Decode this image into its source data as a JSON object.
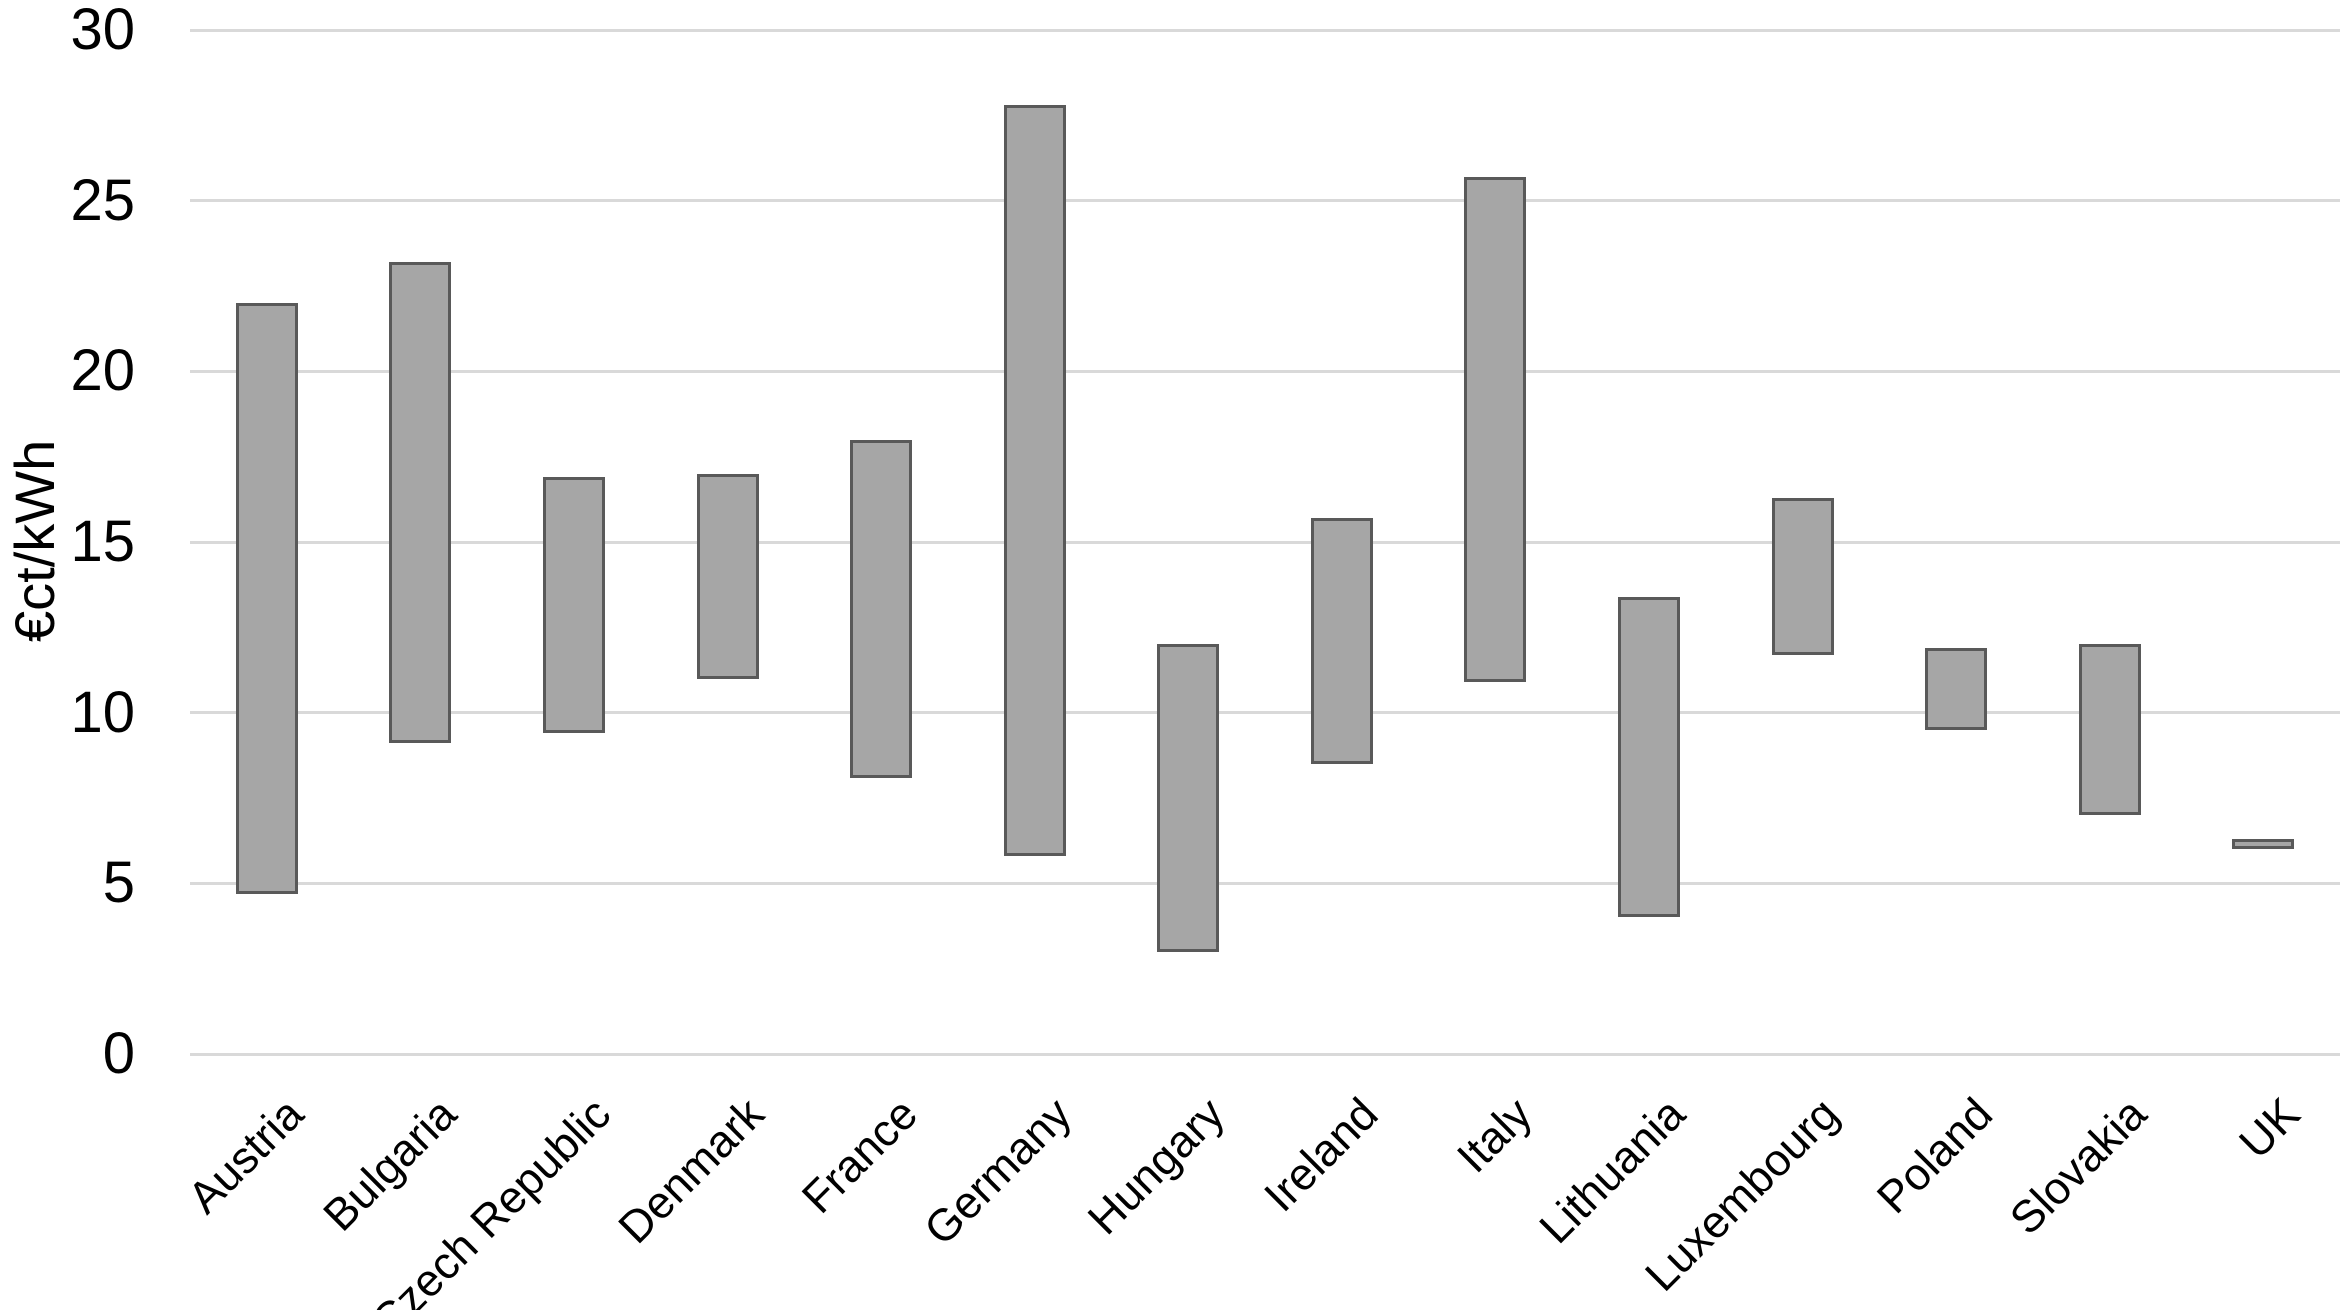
{
  "chart_data": {
    "type": "bar",
    "variant": "floating-range-bars",
    "title": "",
    "xlabel": "",
    "ylabel": "€ct/kWh",
    "ylim": [
      0,
      30
    ],
    "yticks": [
      0,
      5,
      10,
      15,
      20,
      25,
      30
    ],
    "grid": true,
    "legend": false,
    "categories": [
      "Austria",
      "Bulgaria",
      "Czech Republic",
      "Denmark",
      "France",
      "Germany",
      "Hungary",
      "Ireland",
      "Italy",
      "Lithuania",
      "Luxembourg",
      "Poland",
      "Slovakia",
      "UK"
    ],
    "series": [
      {
        "name": "range_low",
        "values": [
          4.7,
          9.1,
          9.4,
          11.0,
          8.1,
          5.8,
          3.0,
          8.5,
          10.9,
          4.0,
          11.7,
          9.5,
          7.0,
          6.0
        ]
      },
      {
        "name": "range_high",
        "values": [
          22.0,
          23.2,
          16.9,
          17.0,
          18.0,
          27.8,
          12.0,
          15.7,
          25.7,
          13.4,
          16.3,
          11.9,
          12.0,
          6.3
        ]
      }
    ],
    "colors": {
      "bar_fill": "#A6A6A6",
      "bar_border": "#595959",
      "gridline": "#D9D9D9",
      "text": "#000000",
      "background": "#FFFFFF"
    }
  }
}
